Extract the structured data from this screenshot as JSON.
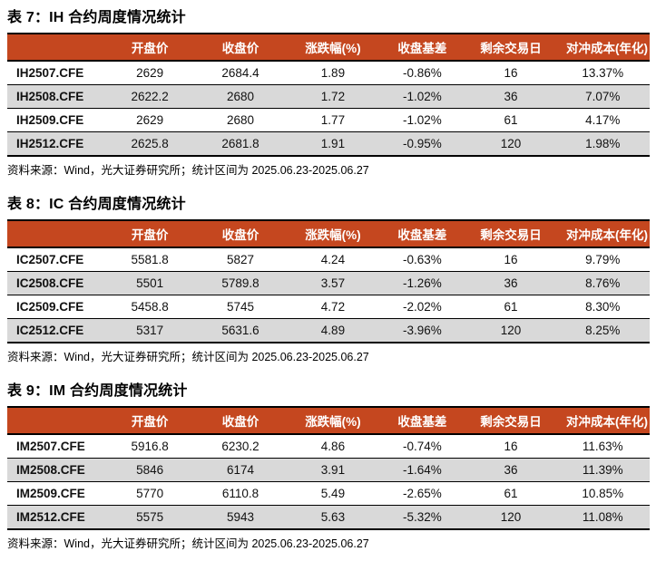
{
  "colors": {
    "header_bg": "#C5471F",
    "header_text": "#FFFFFF",
    "row_alt_bg": "#D9D9D9",
    "border": "#000000",
    "text": "#111111"
  },
  "tables": [
    {
      "title": "表 7：IH 合约周度情况统计",
      "columns": [
        "",
        "开盘价",
        "收盘价",
        "涨跌幅(%)",
        "收盘基差",
        "剩余交易日",
        "对冲成本(年化)"
      ],
      "rows": [
        [
          "IH2507.CFE",
          "2629",
          "2684.4",
          "1.89",
          "-0.86%",
          "16",
          "13.37%"
        ],
        [
          "IH2508.CFE",
          "2622.2",
          "2680",
          "1.72",
          "-1.02%",
          "36",
          "7.07%"
        ],
        [
          "IH2509.CFE",
          "2629",
          "2680",
          "1.77",
          "-1.02%",
          "61",
          "4.17%"
        ],
        [
          "IH2512.CFE",
          "2625.8",
          "2681.8",
          "1.91",
          "-0.95%",
          "120",
          "1.98%"
        ]
      ],
      "source": "资料来源：Wind，光大证券研究所；统计区间为 2025.06.23-2025.06.27"
    },
    {
      "title": "表 8：IC 合约周度情况统计",
      "columns": [
        "",
        "开盘价",
        "收盘价",
        "涨跌幅(%)",
        "收盘基差",
        "剩余交易日",
        "对冲成本(年化)"
      ],
      "rows": [
        [
          "IC2507.CFE",
          "5581.8",
          "5827",
          "4.24",
          "-0.63%",
          "16",
          "9.79%"
        ],
        [
          "IC2508.CFE",
          "5501",
          "5789.8",
          "3.57",
          "-1.26%",
          "36",
          "8.76%"
        ],
        [
          "IC2509.CFE",
          "5458.8",
          "5745",
          "4.72",
          "-2.02%",
          "61",
          "8.30%"
        ],
        [
          "IC2512.CFE",
          "5317",
          "5631.6",
          "4.89",
          "-3.96%",
          "120",
          "8.25%"
        ]
      ],
      "source": "资料来源：Wind，光大证券研究所；统计区间为 2025.06.23-2025.06.27"
    },
    {
      "title": "表 9：IM 合约周度情况统计",
      "columns": [
        "",
        "开盘价",
        "收盘价",
        "涨跌幅(%)",
        "收盘基差",
        "剩余交易日",
        "对冲成本(年化)"
      ],
      "rows": [
        [
          "IM2507.CFE",
          "5916.8",
          "6230.2",
          "4.86",
          "-0.74%",
          "16",
          "11.63%"
        ],
        [
          "IM2508.CFE",
          "5846",
          "6174",
          "3.91",
          "-1.64%",
          "36",
          "11.39%"
        ],
        [
          "IM2509.CFE",
          "5770",
          "6110.8",
          "5.49",
          "-2.65%",
          "61",
          "10.85%"
        ],
        [
          "IM2512.CFE",
          "5575",
          "5943",
          "5.63",
          "-5.32%",
          "120",
          "11.08%"
        ]
      ],
      "source": "资料来源：Wind，光大证券研究所；统计区间为 2025.06.23-2025.06.27"
    }
  ]
}
